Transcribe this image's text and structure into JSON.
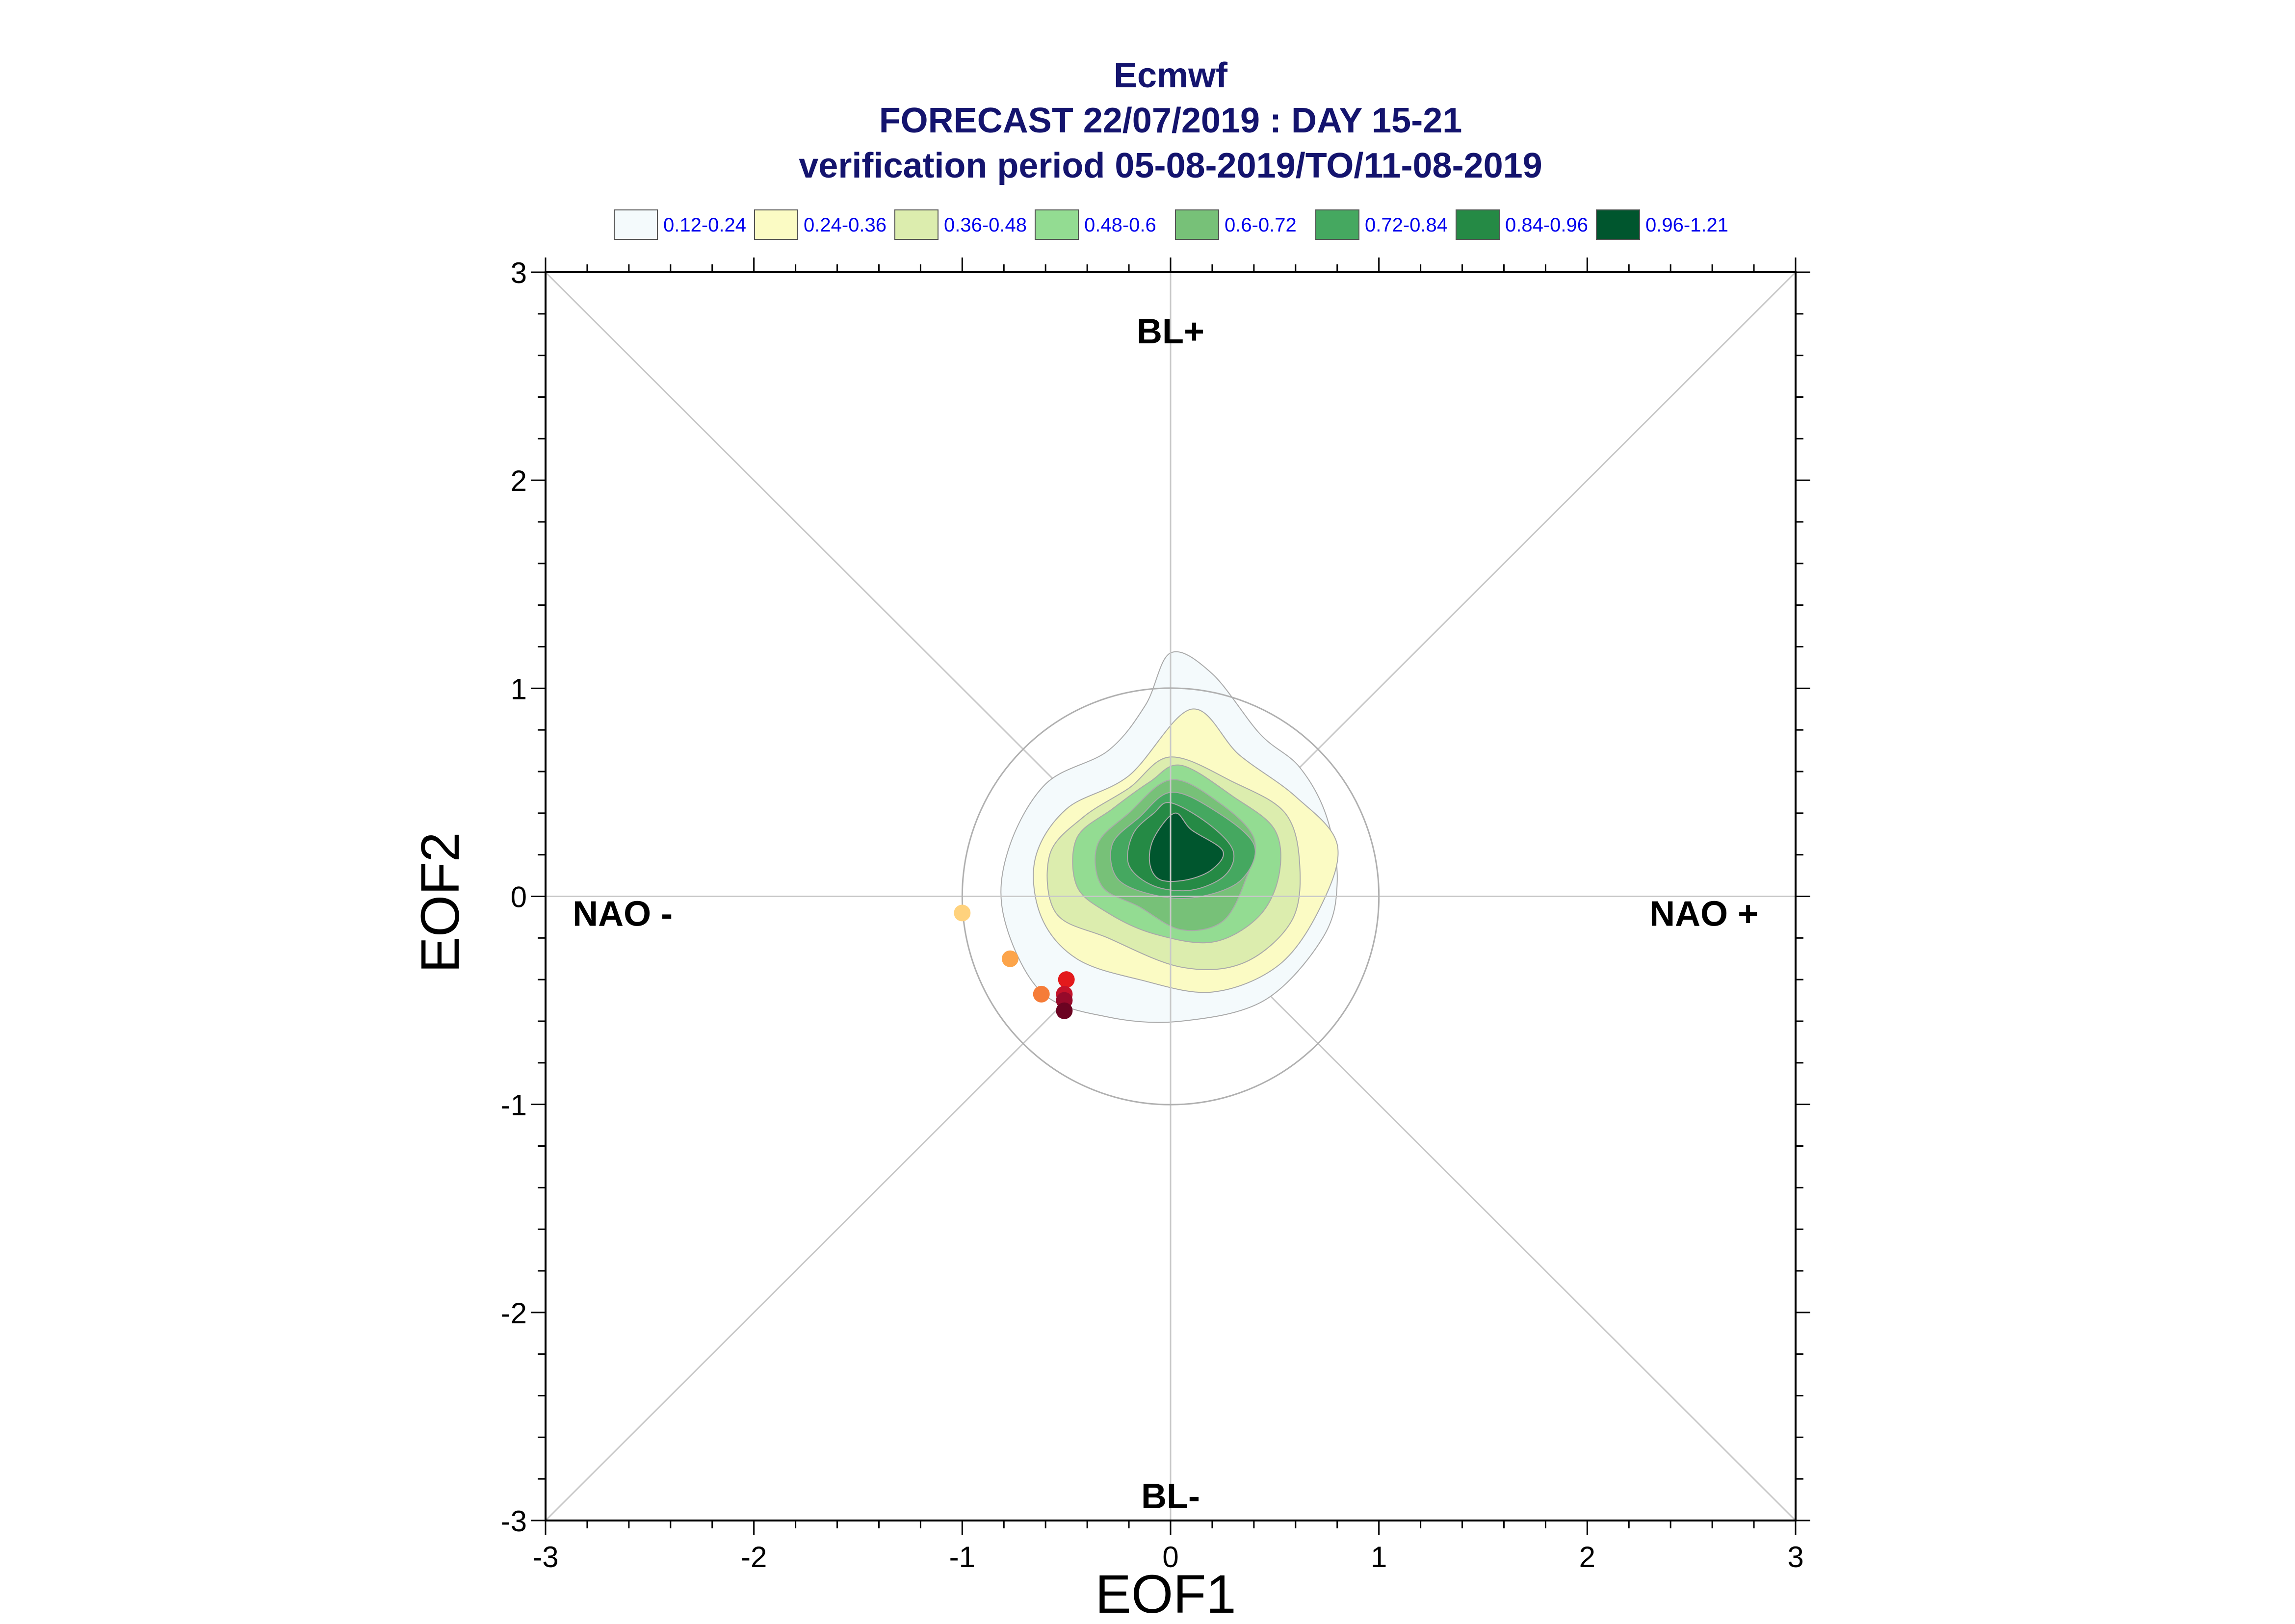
{
  "chart_data": {
    "type": "scatter",
    "title_lines": [
      "Ecmwf",
      "FORECAST 22/07/2019 : DAY 15-21",
      "verification period 05-08-2019/TO/11-08-2019"
    ],
    "xlabel": "EOF1",
    "ylabel": "EOF2",
    "xlim": [
      -3,
      3
    ],
    "ylim": [
      -3,
      3
    ],
    "xticks": [
      -3,
      -2,
      -1,
      0,
      1,
      2,
      3
    ],
    "yticks": [
      -3,
      -2,
      -1,
      0,
      1,
      2,
      3
    ],
    "grid": false,
    "legend_position": "top",
    "legend": [
      {
        "label": "0.12-0.24",
        "color": "#f4fafc"
      },
      {
        "label": "0.24-0.36",
        "color": "#fbfbc4"
      },
      {
        "label": "0.36-0.48",
        "color": "#dcedae"
      },
      {
        "label": "0.48-0.6",
        "color": "#93dc92"
      },
      {
        "label": "0.6-0.72",
        "color": "#77c178"
      },
      {
        "label": "0.72-0.84",
        "color": "#45a860"
      },
      {
        "label": "0.84-0.96",
        "color": "#258a45"
      },
      {
        "label": "0.96-1.21",
        "color": "#00562e"
      }
    ],
    "regime_labels": [
      {
        "text": "BL+",
        "x": 0.0,
        "y": 2.72
      },
      {
        "text": "BL-",
        "x": 0.0,
        "y": -2.88
      },
      {
        "text": "NAO -",
        "x": -2.63,
        "y": -0.08
      },
      {
        "text": "NAO +",
        "x": 2.56,
        "y": -0.08
      }
    ],
    "reference_circle_radius": 1.0,
    "density_contours": [
      {
        "level": "0.12-0.24",
        "color": "#f4fafc",
        "points": [
          [
            0.0,
            1.17
          ],
          [
            0.2,
            1.07
          ],
          [
            0.43,
            0.78
          ],
          [
            0.62,
            0.62
          ],
          [
            0.75,
            0.38
          ],
          [
            0.8,
            0.07
          ],
          [
            0.73,
            -0.2
          ],
          [
            0.45,
            -0.5
          ],
          [
            0.05,
            -0.6
          ],
          [
            -0.3,
            -0.58
          ],
          [
            -0.62,
            -0.46
          ],
          [
            -0.8,
            -0.1
          ],
          [
            -0.78,
            0.22
          ],
          [
            -0.6,
            0.54
          ],
          [
            -0.3,
            0.7
          ],
          [
            -0.12,
            0.92
          ]
        ]
      },
      {
        "level": "0.24-0.36",
        "color": "#fbfbc4",
        "points": [
          [
            0.1,
            0.9
          ],
          [
            0.33,
            0.68
          ],
          [
            0.6,
            0.48
          ],
          [
            0.8,
            0.25
          ],
          [
            0.72,
            -0.05
          ],
          [
            0.52,
            -0.33
          ],
          [
            0.2,
            -0.46
          ],
          [
            -0.15,
            -0.4
          ],
          [
            -0.45,
            -0.3
          ],
          [
            -0.62,
            -0.1
          ],
          [
            -0.65,
            0.18
          ],
          [
            -0.5,
            0.42
          ],
          [
            -0.2,
            0.58
          ]
        ]
      },
      {
        "level": "0.36-0.48",
        "color": "#dcedae",
        "points": [
          [
            0.0,
            0.67
          ],
          [
            0.3,
            0.55
          ],
          [
            0.55,
            0.4
          ],
          [
            0.62,
            0.15
          ],
          [
            0.58,
            -0.12
          ],
          [
            0.35,
            -0.32
          ],
          [
            0.05,
            -0.34
          ],
          [
            -0.3,
            -0.2
          ],
          [
            -0.55,
            -0.08
          ],
          [
            -0.58,
            0.2
          ],
          [
            -0.42,
            0.38
          ],
          [
            -0.2,
            0.52
          ]
        ]
      },
      {
        "level": "0.48-0.6",
        "color": "#93dc92",
        "points": [
          [
            0.05,
            0.63
          ],
          [
            0.3,
            0.48
          ],
          [
            0.5,
            0.32
          ],
          [
            0.52,
            0.1
          ],
          [
            0.42,
            -0.1
          ],
          [
            0.2,
            -0.22
          ],
          [
            -0.08,
            -0.18
          ],
          [
            -0.3,
            -0.08
          ],
          [
            -0.45,
            0.05
          ],
          [
            -0.45,
            0.28
          ],
          [
            -0.28,
            0.42
          ],
          [
            -0.1,
            0.55
          ]
        ]
      },
      {
        "level": "0.6-0.72",
        "color": "#77c178",
        "points": [
          [
            0.0,
            0.56
          ],
          [
            0.22,
            0.46
          ],
          [
            0.4,
            0.28
          ],
          [
            0.36,
            0.08
          ],
          [
            0.25,
            -0.12
          ],
          [
            0.05,
            -0.16
          ],
          [
            -0.15,
            -0.05
          ],
          [
            -0.33,
            0.05
          ],
          [
            -0.35,
            0.25
          ],
          [
            -0.2,
            0.4
          ]
        ]
      },
      {
        "level": "0.72-0.84",
        "color": "#45a860",
        "points": [
          [
            0.0,
            0.5
          ],
          [
            0.2,
            0.42
          ],
          [
            0.4,
            0.25
          ],
          [
            0.34,
            0.08
          ],
          [
            0.15,
            0.0
          ],
          [
            -0.05,
            0.0
          ],
          [
            -0.25,
            0.08
          ],
          [
            -0.28,
            0.25
          ],
          [
            -0.15,
            0.38
          ]
        ]
      },
      {
        "level": "0.84-0.96",
        "color": "#258a45",
        "points": [
          [
            0.0,
            0.45
          ],
          [
            0.18,
            0.35
          ],
          [
            0.3,
            0.22
          ],
          [
            0.26,
            0.1
          ],
          [
            0.1,
            0.03
          ],
          [
            -0.08,
            0.05
          ],
          [
            -0.2,
            0.15
          ],
          [
            -0.18,
            0.3
          ],
          [
            -0.08,
            0.4
          ]
        ]
      },
      {
        "level": "0.96-1.21",
        "color": "#00562e",
        "points": [
          [
            0.02,
            0.4
          ],
          [
            0.1,
            0.32
          ],
          [
            0.25,
            0.22
          ],
          [
            0.2,
            0.13
          ],
          [
            0.08,
            0.08
          ],
          [
            -0.05,
            0.08
          ],
          [
            -0.1,
            0.16
          ],
          [
            -0.08,
            0.28
          ]
        ]
      }
    ],
    "series": [
      {
        "points": [
          {
            "x": -1.0,
            "y": -0.08,
            "color": "#ffd27d"
          },
          {
            "x": -0.77,
            "y": -0.3,
            "color": "#fca44a"
          },
          {
            "x": -0.62,
            "y": -0.47,
            "color": "#f57c38"
          },
          {
            "x": -0.5,
            "y": -0.4,
            "color": "#e31a1c"
          },
          {
            "x": -0.51,
            "y": -0.47,
            "color": "#c4132a"
          },
          {
            "x": -0.51,
            "y": -0.5,
            "color": "#960a2a"
          },
          {
            "x": -0.51,
            "y": -0.55,
            "color": "#6b0321"
          }
        ]
      }
    ]
  }
}
